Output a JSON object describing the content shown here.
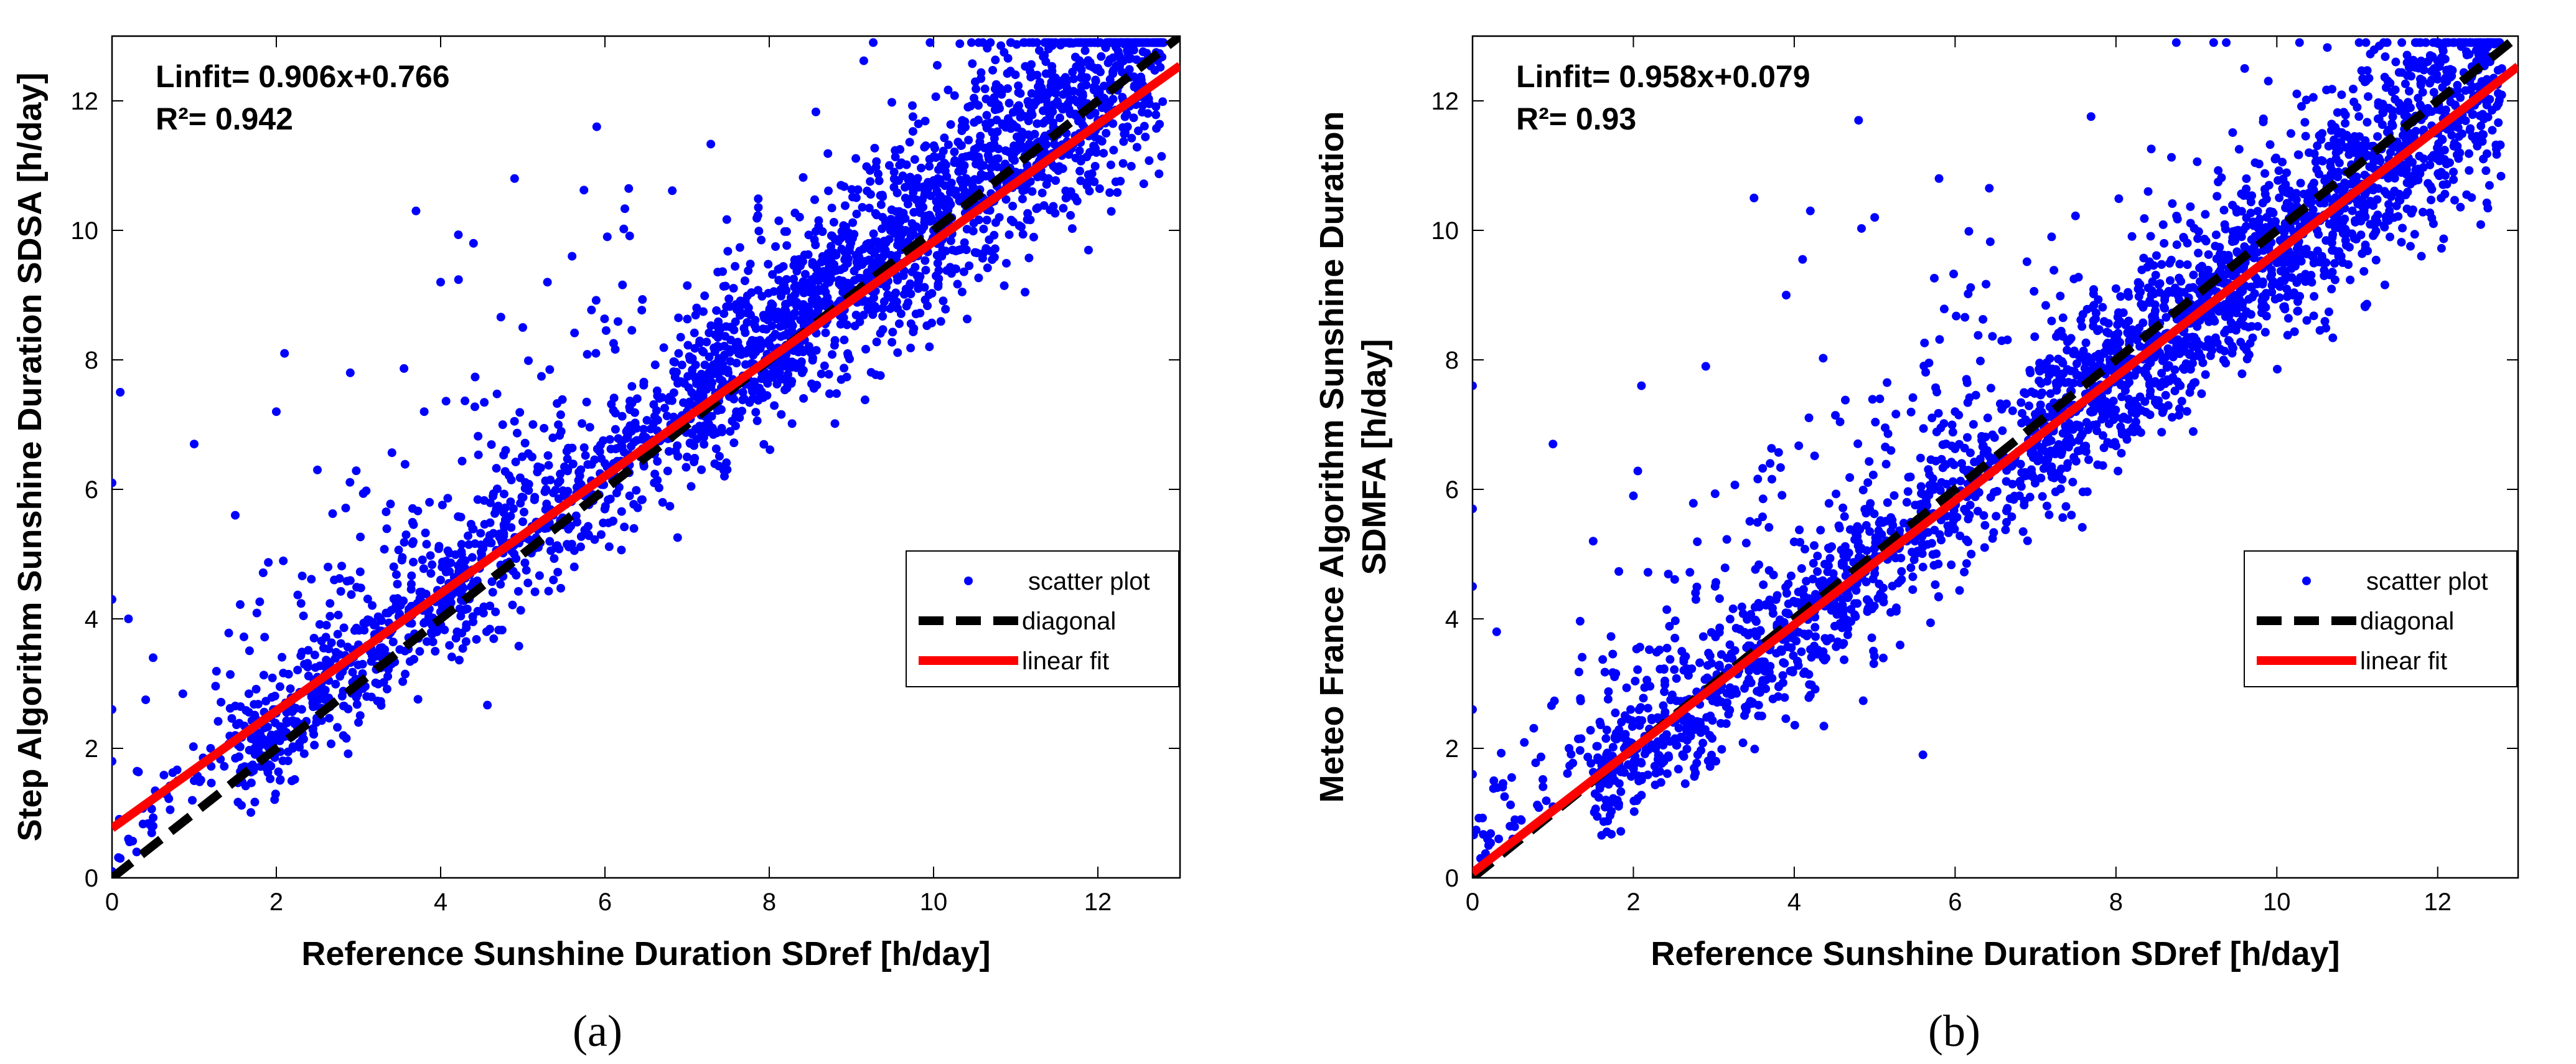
{
  "chart_data": [
    {
      "type": "scatter",
      "panel_label": "(a)",
      "xlabel": "Reference Sunshine Duration SDref [h/day]",
      "ylabel": "Step Algorithm Sunshine Duration SDSA [h/day]",
      "xlim": [
        0,
        13
      ],
      "ylim": [
        0,
        13
      ],
      "xticks": [
        0,
        2,
        4,
        6,
        8,
        10,
        12
      ],
      "yticks": [
        0,
        2,
        4,
        6,
        8,
        10,
        12
      ],
      "fit": {
        "slope": 0.906,
        "intercept": 0.766,
        "r2": 0.942
      },
      "annotation_lines": [
        "Linfit= 0.906x+0.766",
        "R²= 0.942"
      ],
      "legend": [
        "scatter plot",
        "diagonal",
        "linear fit"
      ],
      "legend_position": "lower-right",
      "colors": {
        "scatter": "#0000ff",
        "diagonal": "#000000",
        "fit": "#ff0000"
      },
      "scatter_sample": {
        "x": [
          0,
          0,
          0,
          0,
          0,
          0.1,
          0.1,
          0.2,
          0.2,
          0.3,
          0.5,
          0.8,
          1.0,
          1.2,
          1.5,
          2.0,
          2.1,
          2.5,
          2.9,
          3.1,
          3.7,
          3.8,
          4.0,
          4.4,
          4.9,
          5.0,
          5.3,
          5.6,
          5.9,
          0.5,
          1.0,
          1.5,
          2.0,
          2.5,
          3.0,
          3.5,
          4.0,
          4.5,
          5.0,
          5.5,
          6.0,
          6.5,
          7.0,
          7.5,
          8.0,
          8.5,
          9.0,
          9.5,
          10.0,
          10.5,
          11.0,
          11.5,
          12.0,
          12.5,
          1.2,
          2.2,
          3.4,
          4.6,
          5.8,
          6.6,
          7.2,
          7.8,
          8.4,
          9.2,
          9.8,
          10.4,
          11.2,
          11.8,
          12.3,
          3.0,
          4.2,
          5.4,
          6.3,
          7.0,
          7.6,
          8.2,
          8.8,
          9.4,
          10.1,
          10.8,
          11.4,
          12.1,
          12.6,
          6.8,
          7.4,
          8.6,
          9.6,
          10.6,
          11.6
        ],
        "y": [
          0.1,
          1.8,
          2.6,
          4.3,
          6.1,
          7.5,
          0.3,
          0.6,
          4.0,
          0.4,
          3.4,
          1.5,
          6.7,
          2.0,
          5.6,
          7.2,
          8.1,
          6.3,
          7.8,
          2.8,
          10.3,
          7.2,
          9.2,
          9.8,
          10.8,
          8.5,
          9.2,
          9.6,
          11.6,
          0.8,
          1.5,
          2.2,
          2.6,
          3.1,
          3.6,
          4.2,
          4.6,
          5.0,
          5.5,
          5.9,
          6.4,
          6.8,
          7.2,
          7.8,
          8.3,
          8.6,
          9.1,
          9.5,
          10.0,
          10.4,
          10.9,
          11.3,
          11.7,
          12.3,
          1.2,
          2.0,
          3.3,
          4.2,
          5.3,
          6.1,
          6.9,
          7.4,
          7.8,
          8.8,
          9.3,
          9.7,
          10.6,
          11.1,
          11.9,
          2.4,
          3.8,
          5.1,
          5.9,
          6.5,
          7.2,
          7.9,
          8.3,
          8.9,
          9.6,
          10.2,
          10.8,
          11.5,
          12.1,
          7.0,
          7.7,
          8.8,
          9.9,
          10.5,
          11.6
        ]
      }
    },
    {
      "type": "scatter",
      "panel_label": "(b)",
      "xlabel": "Reference Sunshine Duration SDref [h/day]",
      "ylabel_line1": "Meteo France Algorithm Sunshine Duration",
      "ylabel_line2": "SDMFA [h/day]",
      "xlim": [
        0,
        13
      ],
      "ylim": [
        0,
        13
      ],
      "xticks": [
        0,
        2,
        4,
        6,
        8,
        10,
        12
      ],
      "yticks": [
        0,
        2,
        4,
        6,
        8,
        10,
        12
      ],
      "fit": {
        "slope": 0.958,
        "intercept": 0.079,
        "r2": 0.93
      },
      "annotation_lines": [
        "Linfit= 0.958x+0.079",
        "R²= 0.93"
      ],
      "legend": [
        "scatter plot",
        "diagonal",
        "linear fit"
      ],
      "legend_position": "lower-right",
      "colors": {
        "scatter": "#0000ff",
        "diagonal": "#000000",
        "fit": "#ff0000"
      },
      "scatter_sample": {
        "x": [
          0,
          0,
          0,
          0,
          0,
          0,
          0.1,
          0.2,
          0.3,
          0.6,
          1.0,
          1.2,
          1.5,
          2.0,
          2.1,
          2.9,
          3.5,
          3.7,
          3.9,
          4.2,
          4.8,
          5.0,
          5.6,
          5.8,
          7.2,
          8.4,
          9.6,
          0.5,
          1.0,
          1.5,
          2.0,
          2.5,
          3.0,
          3.5,
          4.0,
          4.5,
          5.0,
          5.5,
          6.0,
          6.5,
          7.0,
          7.5,
          8.0,
          8.5,
          9.0,
          9.5,
          10.0,
          10.5,
          11.0,
          11.5,
          12.0,
          12.5,
          1.8,
          2.8,
          3.8,
          4.6,
          5.2,
          5.6,
          6.2,
          6.8,
          7.4,
          8.2,
          8.8,
          9.4,
          10.2,
          10.8,
          11.4,
          12.2,
          3.2,
          4.4,
          5.4,
          6.4,
          7.0,
          7.8,
          8.6,
          9.2,
          9.8,
          10.6,
          11.2,
          11.8,
          12.6,
          6.0,
          7.2,
          8.0,
          9.0,
          10.4,
          11.6
        ],
        "y": [
          0.1,
          1.6,
          2.6,
          4.5,
          5.7,
          7.6,
          0.3,
          0.5,
          3.8,
          0.9,
          6.7,
          2.0,
          5.2,
          5.9,
          7.6,
          7.9,
          10.5,
          6.4,
          9.0,
          10.3,
          11.7,
          10.2,
          1.9,
          10.8,
          9.9,
          10.6,
          12.5,
          0.6,
          1.1,
          1.5,
          2.0,
          2.4,
          2.8,
          3.3,
          3.8,
          4.3,
          4.7,
          5.2,
          5.8,
          6.3,
          6.7,
          7.2,
          7.7,
          8.1,
          8.6,
          9.0,
          9.5,
          10.0,
          10.6,
          11.0,
          11.5,
          12.0,
          1.2,
          1.9,
          2.8,
          3.6,
          4.1,
          4.8,
          5.0,
          5.9,
          6.4,
          7.2,
          7.6,
          8.3,
          9.0,
          9.6,
          10.3,
          11.3,
          3.6,
          4.5,
          5.8,
          6.6,
          6.9,
          8.0,
          8.8,
          9.1,
          9.9,
          10.5,
          11.3,
          11.9,
          12.3,
          7.2,
          8.6,
          9.1,
          8.3,
          11.2,
          11.0
        ]
      }
    }
  ]
}
